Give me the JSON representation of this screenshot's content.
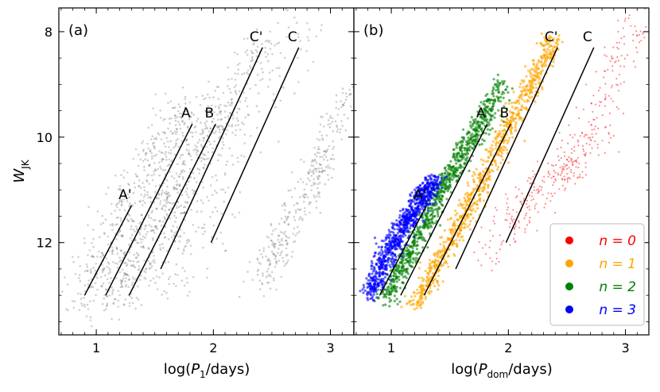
{
  "chart_data": [
    {
      "type": "scatter",
      "panel_label": "(a)",
      "xlabel": "log(P₁/days)",
      "ylabel": "W_JK",
      "xlim": [
        0.68,
        3.2
      ],
      "ylim": [
        7.55,
        13.75
      ],
      "y_inverted": true,
      "xticks": [
        1,
        2,
        3
      ],
      "yticks": [
        8,
        10,
        12
      ],
      "series": [
        {
          "color": "#555555",
          "density_clouds": [
            {
              "x": [
                0.85,
                1.75
              ],
              "y": [
                13.2,
                9.4
              ],
              "weight": 1.0,
              "width": 0.1
            },
            {
              "x": [
                1.1,
                2.05
              ],
              "y": [
                13.2,
                9.4
              ],
              "weight": 0.9,
              "width": 0.09
            },
            {
              "x": [
                1.3,
                2.45
              ],
              "y": [
                13.1,
                8.0
              ],
              "weight": 0.7,
              "width": 0.1
            },
            {
              "x": [
                1.6,
                2.8
              ],
              "y": [
                13.0,
                7.7
              ],
              "weight": 0.35,
              "width": 0.12
            },
            {
              "x": [
                2.4,
                2.95
              ],
              "y": [
                12.8,
                10.4
              ],
              "weight": 0.55,
              "width": 0.07
            },
            {
              "x": [
                2.85,
                3.15
              ],
              "y": [
                10.8,
                9.2
              ],
              "weight": 0.25,
              "width": 0.06
            }
          ]
        }
      ],
      "fit_lines": [
        {
          "label": "A'",
          "x": [
            0.9,
            1.3
          ],
          "y": [
            13.0,
            11.3
          ]
        },
        {
          "label": "A",
          "x": [
            1.08,
            1.82
          ],
          "y": [
            13.0,
            9.75
          ]
        },
        {
          "label": "B",
          "x": [
            1.28,
            2.02
          ],
          "y": [
            13.0,
            9.75
          ]
        },
        {
          "label": "C'",
          "x": [
            1.55,
            2.42
          ],
          "y": [
            12.5,
            8.3
          ]
        },
        {
          "label": "C",
          "x": [
            1.98,
            2.73
          ],
          "y": [
            12.0,
            8.3
          ]
        }
      ]
    },
    {
      "type": "scatter",
      "panel_label": "(b)",
      "xlabel": "log(P_dom/days)",
      "xlim": [
        0.68,
        3.2
      ],
      "ylim": [
        7.55,
        13.75
      ],
      "y_inverted": true,
      "xticks": [
        1,
        2,
        3
      ],
      "yticks": [
        8,
        10,
        12
      ],
      "legend_position": "lower right",
      "series": [
        {
          "name": "n = 0",
          "color": "#ff0000",
          "points": [
            [
              1.85,
              12.2
            ],
            [
              2.05,
              11.5
            ],
            [
              2.25,
              11.0
            ],
            [
              2.45,
              10.7
            ],
            [
              2.6,
              10.3
            ],
            [
              2.75,
              9.8
            ],
            [
              2.9,
              8.6
            ],
            [
              3.1,
              7.8
            ]
          ]
        },
        {
          "name": "n = 1",
          "color": "#ffa500",
          "points": [
            [
              1.2,
              13.2
            ],
            [
              1.5,
              12.0
            ],
            [
              1.8,
              10.7
            ],
            [
              2.1,
              9.4
            ],
            [
              2.4,
              8.1
            ]
          ]
        },
        {
          "name": "n = 2",
          "color": "#008000",
          "points": [
            [
              0.95,
              13.1
            ],
            [
              1.2,
              12.0
            ],
            [
              1.45,
              10.9
            ],
            [
              1.7,
              10.0
            ],
            [
              1.95,
              9.0
            ]
          ]
        },
        {
          "name": "n = 3",
          "color": "#0000ff",
          "points": [
            [
              0.82,
              13.0
            ],
            [
              0.95,
              12.3
            ],
            [
              1.1,
              11.7
            ],
            [
              1.25,
              11.2
            ],
            [
              1.38,
              10.8
            ]
          ]
        }
      ],
      "fit_lines": [
        {
          "label": "A",
          "x": [
            1.08,
            1.82
          ],
          "y": [
            13.0,
            9.75
          ]
        },
        {
          "label": "B",
          "x": [
            1.28,
            2.02
          ],
          "y": [
            13.0,
            9.75
          ]
        },
        {
          "label": "C'",
          "x": [
            1.55,
            2.42
          ],
          "y": [
            12.5,
            8.3
          ]
        },
        {
          "label": "C",
          "x": [
            1.98,
            2.73
          ],
          "y": [
            12.0,
            8.3
          ]
        },
        {
          "label": "A'",
          "x": [
            0.9,
            1.3
          ],
          "y": [
            13.0,
            11.3
          ]
        }
      ],
      "legend": [
        {
          "label": "n = 0",
          "color": "#ff0000"
        },
        {
          "label": "n = 1",
          "color": "#ffa500"
        },
        {
          "label": "n = 2",
          "color": "#008000"
        },
        {
          "label": "n = 3",
          "color": "#0000ff"
        }
      ]
    }
  ]
}
